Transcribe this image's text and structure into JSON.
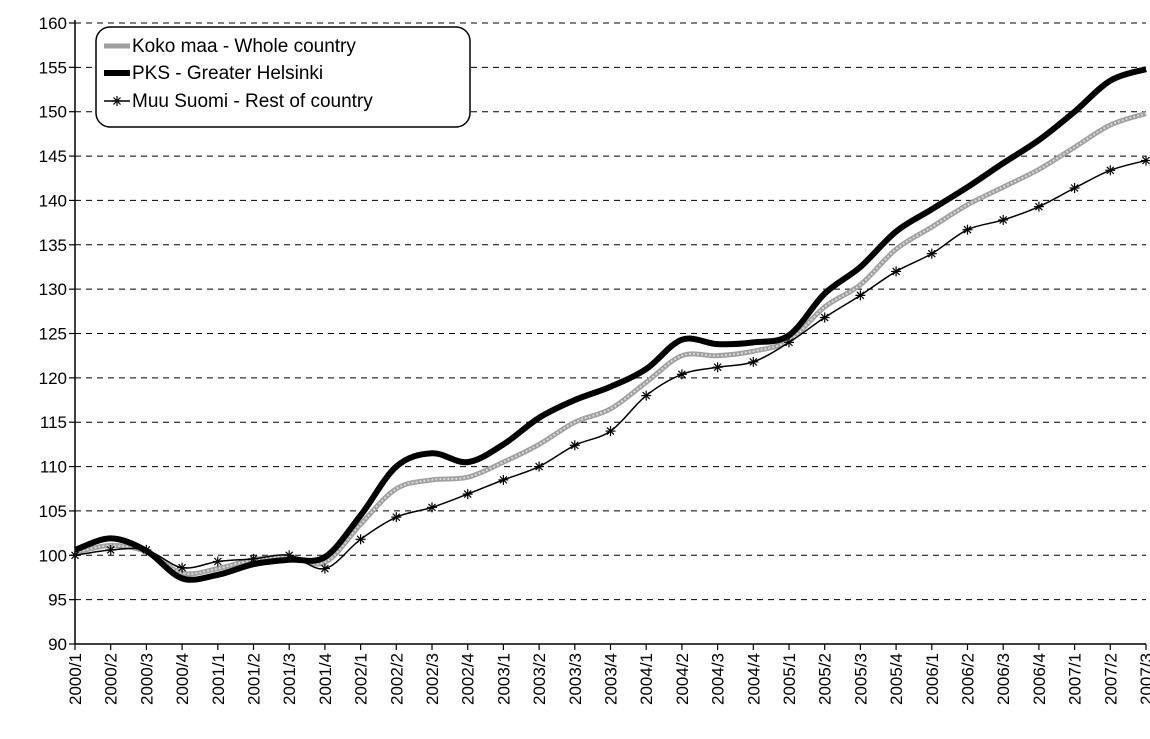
{
  "chart_data": {
    "type": "line",
    "title": "",
    "xlabel": "",
    "ylabel": "",
    "ylim": [
      90,
      160
    ],
    "yticks": [
      90,
      95,
      100,
      105,
      110,
      115,
      120,
      125,
      130,
      135,
      140,
      145,
      150,
      155,
      160
    ],
    "grid": "horizontal dashed",
    "legend_position": "top-left",
    "categories": [
      "2000/1",
      "2000/2",
      "2000/3",
      "2000/4",
      "2001/1",
      "2001/2",
      "2001/3",
      "2001/4",
      "2002/1",
      "2002/2",
      "2002/3",
      "2002/4",
      "2003/1",
      "2003/2",
      "2003/3",
      "2003/4",
      "2004/1",
      "2004/2",
      "2004/3",
      "2004/4",
      "2005/1",
      "2005/2",
      "2005/3",
      "2005/4",
      "2006/1",
      "2006/2",
      "2006/3",
      "2006/4",
      "2007/1",
      "2007/2",
      "2007/3"
    ],
    "series": [
      {
        "name": "Koko maa - Whole country",
        "color": "#a8a8a8",
        "style": "thick-gray",
        "values": [
          100.3,
          101.1,
          100.4,
          98.0,
          98.5,
          99.5,
          99.8,
          99.2,
          103.5,
          107.5,
          108.5,
          108.8,
          110.5,
          112.5,
          115.0,
          116.5,
          119.5,
          122.5,
          122.5,
          123.0,
          124.2,
          128.0,
          130.5,
          134.5,
          137.0,
          139.5,
          141.5,
          143.5,
          146.0,
          148.5,
          149.8
        ]
      },
      {
        "name": "PKS - Greater Helsinki",
        "color": "#000000",
        "style": "thick-black",
        "values": [
          100.6,
          101.9,
          100.5,
          97.4,
          97.8,
          99.0,
          99.5,
          99.8,
          104.5,
          110.0,
          111.5,
          110.5,
          112.5,
          115.5,
          117.5,
          119.0,
          121.0,
          124.3,
          123.8,
          124.0,
          124.8,
          129.5,
          132.5,
          136.5,
          139.0,
          141.5,
          144.2,
          146.8,
          150.0,
          153.5,
          154.8
        ]
      },
      {
        "name": "Muu Suomi - Rest of country",
        "color": "#000000",
        "style": "thin-star",
        "values": [
          100.0,
          100.6,
          100.6,
          98.6,
          99.3,
          99.6,
          100.0,
          98.5,
          101.8,
          104.3,
          105.4,
          106.9,
          108.5,
          110.0,
          112.4,
          114.0,
          118.0,
          120.4,
          121.2,
          121.8,
          124.0,
          126.8,
          129.3,
          132.0,
          134.0,
          136.7,
          137.8,
          139.3,
          141.4,
          143.4,
          144.5
        ]
      }
    ]
  }
}
